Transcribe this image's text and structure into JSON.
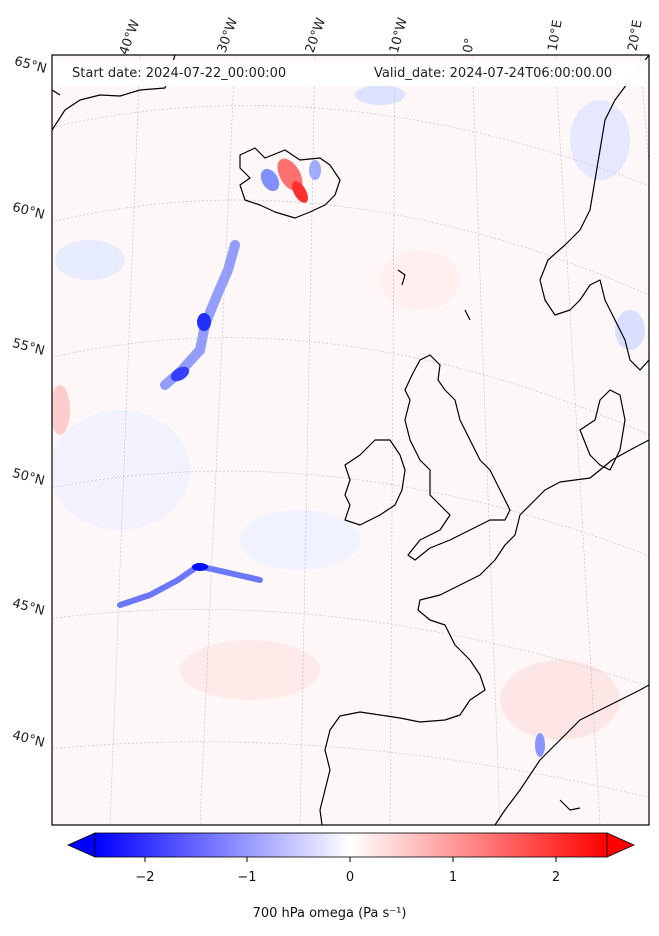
{
  "header": {
    "start_date": "Start date: 2024-07-22_00:00:00",
    "valid_date": "Valid_date: 2024-07-24T06:00:00.00"
  },
  "longitude_labels": [
    "40°W",
    "30°W",
    "20°W",
    "10°W",
    "0°",
    "10°E",
    "20°E"
  ],
  "latitude_labels": [
    "65°N",
    "60°N",
    "55°N",
    "50°N",
    "45°N",
    "40°N"
  ],
  "colorbar": {
    "label": "700 hPa omega (Pa s⁻¹)",
    "ticks": [
      "−2",
      "−1",
      "0",
      "1",
      "2"
    ],
    "colors": {
      "negative": "#0000ff",
      "zero": "#ffffff",
      "positive": "#ff0000"
    }
  }
}
